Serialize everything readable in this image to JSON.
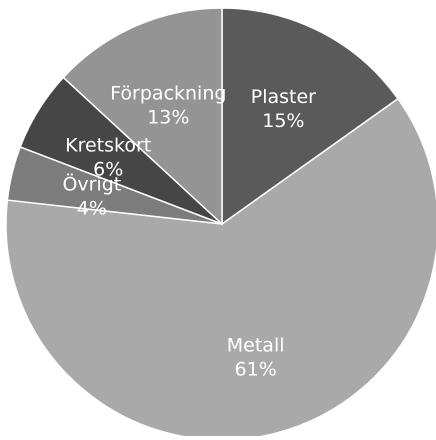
{
  "chart_data": {
    "type": "pie",
    "title": "",
    "start_angle_deg": 0,
    "direction": "clockwise",
    "legend": "none",
    "slices": [
      {
        "name": "Plaster",
        "value": 15,
        "label": "15%",
        "color": "#5a5a5a"
      },
      {
        "name": "Metall",
        "value": 61,
        "label": "61%",
        "color": "#a9a9a9"
      },
      {
        "name": "Övrigt",
        "value": 4,
        "label": "4%",
        "color": "#7c7c7c"
      },
      {
        "name": "Kretskort",
        "value": 6,
        "label": "6%",
        "color": "#464646"
      },
      {
        "name": "Förpackning",
        "value": 13,
        "label": "13%",
        "color": "#949494"
      }
    ],
    "label_color": "#ffffff"
  }
}
